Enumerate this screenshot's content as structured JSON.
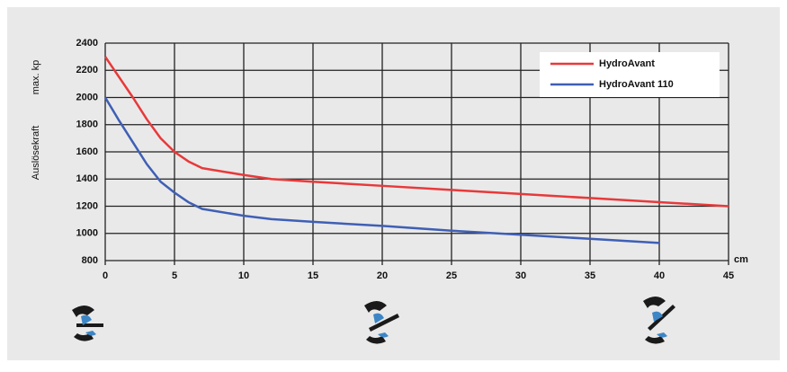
{
  "chart_data": {
    "type": "line",
    "y_label": "Auslösekraft",
    "y_unit": "max. kp",
    "x_unit": "cm",
    "x": [
      0,
      1,
      2,
      3,
      4,
      5,
      6,
      7,
      10,
      12,
      15,
      20,
      25,
      30,
      35,
      40,
      45
    ],
    "series": [
      {
        "name": "HydroAvant",
        "color": "#e8393a",
        "values": [
          2300,
          2150,
          2000,
          1840,
          1700,
          1600,
          1530,
          1480,
          1430,
          1400,
          1380,
          1350,
          1320,
          1290,
          1260,
          1230,
          1200
        ]
      },
      {
        "name": "HydroAvant 110",
        "color": "#3f5fb5",
        "values": [
          2000,
          1830,
          1670,
          1510,
          1380,
          1300,
          1230,
          1180,
          1130,
          1105,
          1085,
          1055,
          1020,
          990,
          960,
          930,
          null
        ]
      }
    ],
    "xlim": [
      0,
      45
    ],
    "xticks": [
      0,
      5,
      10,
      15,
      20,
      25,
      30,
      35,
      40,
      45
    ],
    "ylim": [
      800,
      2400
    ],
    "yticks": [
      800,
      1000,
      1200,
      1400,
      1600,
      1800,
      2000,
      2200,
      2400
    ],
    "grid": true,
    "legend": "top-right"
  }
}
